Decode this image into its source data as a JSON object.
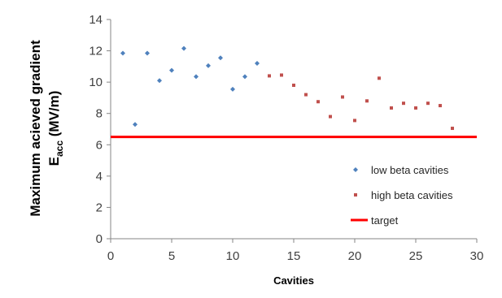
{
  "chart_data": {
    "type": "scatter",
    "title": "",
    "xlabel": "Cavities",
    "ylabel_line1": "Maximum acieved gradient",
    "ylabel_main": "E",
    "ylabel_sub": "acc",
    "ylabel_unit": " (MV/m)",
    "xlim": [
      0,
      30
    ],
    "ylim": [
      0,
      14
    ],
    "x_ticks": [
      0,
      5,
      10,
      15,
      20,
      25,
      30
    ],
    "y_ticks": [
      0,
      2,
      4,
      6,
      8,
      10,
      12,
      14
    ],
    "grid": false,
    "legend_position": "bottom-right",
    "series": [
      {
        "name": "low beta cavities",
        "marker": "diamond",
        "color": "#4f81bd",
        "x": [
          1,
          2,
          3,
          4,
          5,
          6,
          7,
          8,
          9,
          10,
          11,
          12
        ],
        "y": [
          11.85,
          7.3,
          11.85,
          10.1,
          10.75,
          12.15,
          10.35,
          11.05,
          11.55,
          9.55,
          10.35,
          11.2
        ]
      },
      {
        "name": "high beta cavities",
        "marker": "square",
        "color": "#c0504d",
        "x": [
          13,
          14,
          15,
          16,
          17,
          18,
          19,
          20,
          21,
          22,
          23,
          24,
          25,
          26,
          27,
          28
        ],
        "y": [
          10.4,
          10.45,
          9.8,
          9.2,
          8.75,
          7.8,
          9.05,
          7.55,
          8.8,
          10.25,
          8.35,
          8.65,
          8.35,
          8.65,
          8.5,
          7.05
        ]
      }
    ],
    "reference_lines": [
      {
        "name": "target",
        "y": 6.5,
        "color": "#ff0000"
      }
    ]
  }
}
